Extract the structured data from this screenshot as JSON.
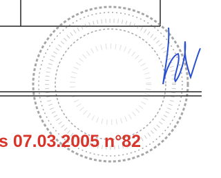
{
  "document": {
    "reference": "s 07.03.2005 n°82"
  }
}
